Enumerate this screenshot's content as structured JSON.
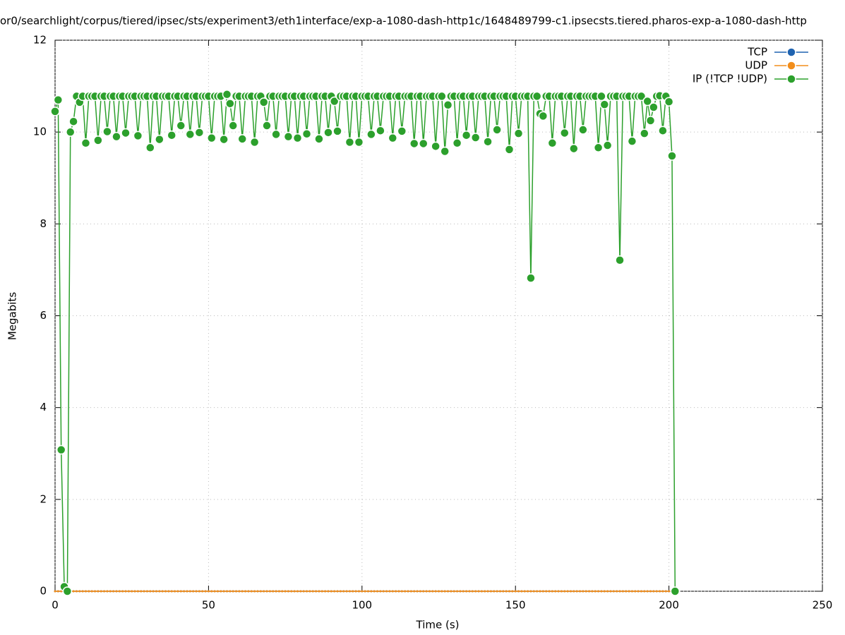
{
  "chart_data": {
    "type": "line",
    "title": "or0/searchlight/corpus/tiered/ipsec/sts/experiment3/eth1interface/exp-a-1080-dash-http1c/1648489799-c1.ipsecsts.tiered.pharos-exp-a-1080-dash-http",
    "xlabel": "Time (s)",
    "ylabel": "Megabits",
    "xlim": [
      0,
      250
    ],
    "xticks": [
      0,
      50,
      100,
      150,
      200,
      250
    ],
    "ylim": [
      0,
      12
    ],
    "yticks": [
      0,
      2,
      4,
      6,
      8,
      10,
      12
    ],
    "grid": true,
    "legend": "upper right",
    "x": [
      0,
      1,
      2,
      3,
      4,
      5,
      6,
      7,
      8,
      9,
      10,
      11,
      12,
      13,
      14,
      15,
      16,
      17,
      18,
      19,
      20,
      21,
      22,
      23,
      24,
      25,
      26,
      27,
      28,
      29,
      30,
      31,
      32,
      33,
      34,
      35,
      36,
      37,
      38,
      39,
      40,
      41,
      42,
      43,
      44,
      45,
      46,
      47,
      48,
      49,
      50,
      51,
      52,
      53,
      54,
      55,
      56,
      57,
      58,
      59,
      60,
      61,
      62,
      63,
      64,
      65,
      66,
      67,
      68,
      69,
      70,
      71,
      72,
      73,
      74,
      75,
      76,
      77,
      78,
      79,
      80,
      81,
      82,
      83,
      84,
      85,
      86,
      87,
      88,
      89,
      90,
      91,
      92,
      93,
      94,
      95,
      96,
      97,
      98,
      99,
      100,
      101,
      102,
      103,
      104,
      105,
      106,
      107,
      108,
      109,
      110,
      111,
      112,
      113,
      114,
      115,
      116,
      117,
      118,
      119,
      120,
      121,
      122,
      123,
      124,
      125,
      126,
      127,
      128,
      129,
      130,
      131,
      132,
      133,
      134,
      135,
      136,
      137,
      138,
      139,
      140,
      141,
      142,
      143,
      144,
      145,
      146,
      147,
      148,
      149,
      150,
      151,
      152,
      153,
      154,
      155,
      156,
      157,
      158,
      159,
      160,
      161,
      162,
      163,
      164,
      165,
      166,
      167,
      168,
      169,
      170,
      171,
      172,
      173,
      174,
      175,
      176,
      177,
      178,
      179,
      180,
      181,
      182,
      183,
      184,
      185,
      186,
      187,
      188,
      189,
      190,
      191,
      192,
      193,
      194,
      195,
      196,
      197,
      198,
      199,
      200,
      201,
      202
    ],
    "series": [
      {
        "name": "TCP",
        "color": "#1f63b0",
        "values": [
          0,
          0,
          0,
          0,
          0,
          0,
          0,
          0,
          0,
          0,
          0,
          0,
          0,
          0,
          0,
          0,
          0,
          0,
          0,
          0,
          0,
          0,
          0,
          0,
          0,
          0,
          0,
          0,
          0,
          0,
          0,
          0,
          0,
          0,
          0,
          0,
          0,
          0,
          0,
          0,
          0,
          0,
          0,
          0,
          0,
          0,
          0,
          0,
          0,
          0,
          0,
          0,
          0,
          0,
          0,
          0,
          0,
          0,
          0,
          0,
          0,
          0,
          0,
          0,
          0,
          0,
          0,
          0,
          0,
          0,
          0,
          0,
          0,
          0,
          0,
          0,
          0,
          0,
          0,
          0,
          0,
          0,
          0,
          0,
          0,
          0,
          0,
          0,
          0,
          0,
          0,
          0,
          0,
          0,
          0,
          0,
          0,
          0,
          0,
          0,
          0,
          0,
          0,
          0,
          0,
          0,
          0,
          0,
          0,
          0,
          0,
          0,
          0,
          0,
          0,
          0,
          0,
          0,
          0,
          0,
          0,
          0,
          0,
          0,
          0,
          0,
          0,
          0,
          0,
          0,
          0,
          0,
          0,
          0,
          0,
          0,
          0,
          0,
          0,
          0,
          0,
          0,
          0,
          0,
          0,
          0,
          0,
          0,
          0,
          0,
          0,
          0,
          0,
          0,
          0,
          0,
          0,
          0,
          0,
          0,
          0,
          0,
          0,
          0,
          0,
          0,
          0,
          0,
          0,
          0,
          0,
          0,
          0,
          0,
          0,
          0,
          0,
          0,
          0,
          0,
          0,
          0,
          0,
          0,
          0,
          0,
          0,
          0,
          0,
          0,
          0,
          0,
          0,
          0,
          0,
          0,
          0,
          0,
          0,
          0,
          0,
          0,
          0
        ]
      },
      {
        "name": "UDP",
        "color": "#f28e1c",
        "values": [
          0,
          0,
          0,
          0,
          0,
          0,
          0,
          0,
          0,
          0,
          0,
          0,
          0,
          0,
          0,
          0,
          0,
          0,
          0,
          0,
          0,
          0,
          0,
          0,
          0,
          0,
          0,
          0,
          0,
          0,
          0,
          0,
          0,
          0,
          0,
          0,
          0,
          0,
          0,
          0,
          0,
          0,
          0,
          0,
          0,
          0,
          0,
          0,
          0,
          0,
          0,
          0,
          0,
          0,
          0,
          0,
          0,
          0,
          0,
          0,
          0,
          0,
          0,
          0,
          0,
          0,
          0,
          0,
          0,
          0,
          0,
          0,
          0,
          0,
          0,
          0,
          0,
          0,
          0,
          0,
          0,
          0,
          0,
          0,
          0,
          0,
          0,
          0,
          0,
          0,
          0,
          0,
          0,
          0,
          0,
          0,
          0,
          0,
          0,
          0,
          0,
          0,
          0,
          0,
          0,
          0,
          0,
          0,
          0,
          0,
          0,
          0,
          0,
          0,
          0,
          0,
          0,
          0,
          0,
          0,
          0,
          0,
          0,
          0,
          0,
          0,
          0,
          0,
          0,
          0,
          0,
          0,
          0,
          0,
          0,
          0,
          0,
          0,
          0,
          0,
          0,
          0,
          0,
          0,
          0,
          0,
          0,
          0,
          0,
          0,
          0,
          0,
          0,
          0,
          0,
          0,
          0,
          0,
          0,
          0,
          0,
          0,
          0,
          0,
          0,
          0,
          0,
          0,
          0,
          0,
          0,
          0,
          0,
          0,
          0,
          0,
          0,
          0,
          0,
          0,
          0,
          0,
          0,
          0,
          0,
          0,
          0,
          0,
          0,
          0,
          0,
          0,
          0,
          0,
          0,
          0,
          0,
          0,
          0,
          0,
          0,
          0,
          0
        ]
      },
      {
        "name": "IP (!TCP  !UDP)",
        "color": "#2ca02c",
        "values": [
          10.45,
          10.7,
          3.08,
          0.1,
          0,
          10.0,
          10.23,
          10.78,
          10.65,
          10.78,
          9.76,
          10.78,
          10.78,
          10.78,
          9.82,
          10.78,
          10.78,
          10.01,
          10.78,
          10.78,
          9.9,
          10.78,
          10.78,
          9.98,
          10.78,
          10.78,
          10.78,
          9.92,
          10.78,
          10.78,
          10.78,
          9.66,
          10.78,
          10.78,
          9.84,
          10.78,
          10.78,
          10.78,
          9.93,
          10.78,
          10.78,
          10.14,
          10.78,
          10.78,
          9.95,
          10.78,
          10.78,
          9.99,
          10.78,
          10.78,
          10.78,
          9.87,
          10.78,
          10.78,
          10.78,
          9.84,
          10.82,
          10.62,
          10.14,
          10.78,
          10.78,
          9.85,
          10.78,
          10.78,
          10.78,
          9.78,
          10.78,
          10.78,
          10.65,
          10.14,
          10.78,
          10.78,
          9.95,
          10.78,
          10.78,
          10.78,
          9.9,
          10.78,
          10.78,
          9.87,
          10.78,
          10.78,
          9.96,
          10.78,
          10.78,
          10.78,
          9.85,
          10.78,
          10.78,
          9.99,
          10.78,
          10.67,
          10.02,
          10.78,
          10.78,
          10.78,
          9.78,
          10.78,
          10.78,
          9.78,
          10.78,
          10.78,
          10.78,
          9.95,
          10.78,
          10.78,
          10.03,
          10.78,
          10.78,
          10.78,
          9.87,
          10.78,
          10.78,
          10.02,
          10.78,
          10.78,
          10.78,
          9.75,
          10.78,
          10.78,
          9.75,
          10.78,
          10.78,
          10.78,
          9.69,
          10.78,
          10.78,
          9.58,
          10.59,
          10.78,
          10.78,
          9.76,
          10.78,
          10.78,
          9.93,
          10.78,
          10.78,
          9.88,
          10.78,
          10.78,
          10.78,
          9.79,
          10.78,
          10.78,
          10.05,
          10.78,
          10.78,
          10.78,
          9.62,
          10.78,
          10.78,
          9.97,
          10.78,
          10.78,
          10.78,
          6.82,
          10.78,
          10.78,
          10.4,
          10.35,
          10.78,
          10.78,
          9.76,
          10.78,
          10.78,
          10.78,
          9.98,
          10.78,
          10.78,
          9.64,
          10.78,
          10.78,
          10.05,
          10.78,
          10.78,
          10.78,
          10.78,
          9.66,
          10.78,
          10.6,
          9.71,
          10.78,
          10.78,
          10.78,
          7.21,
          10.78,
          10.78,
          10.78,
          9.8,
          10.78,
          10.78,
          10.78,
          9.97,
          10.67,
          10.25,
          10.54,
          10.78,
          10.79,
          10.03,
          10.78,
          10.66,
          9.48,
          0
        ]
      }
    ]
  }
}
